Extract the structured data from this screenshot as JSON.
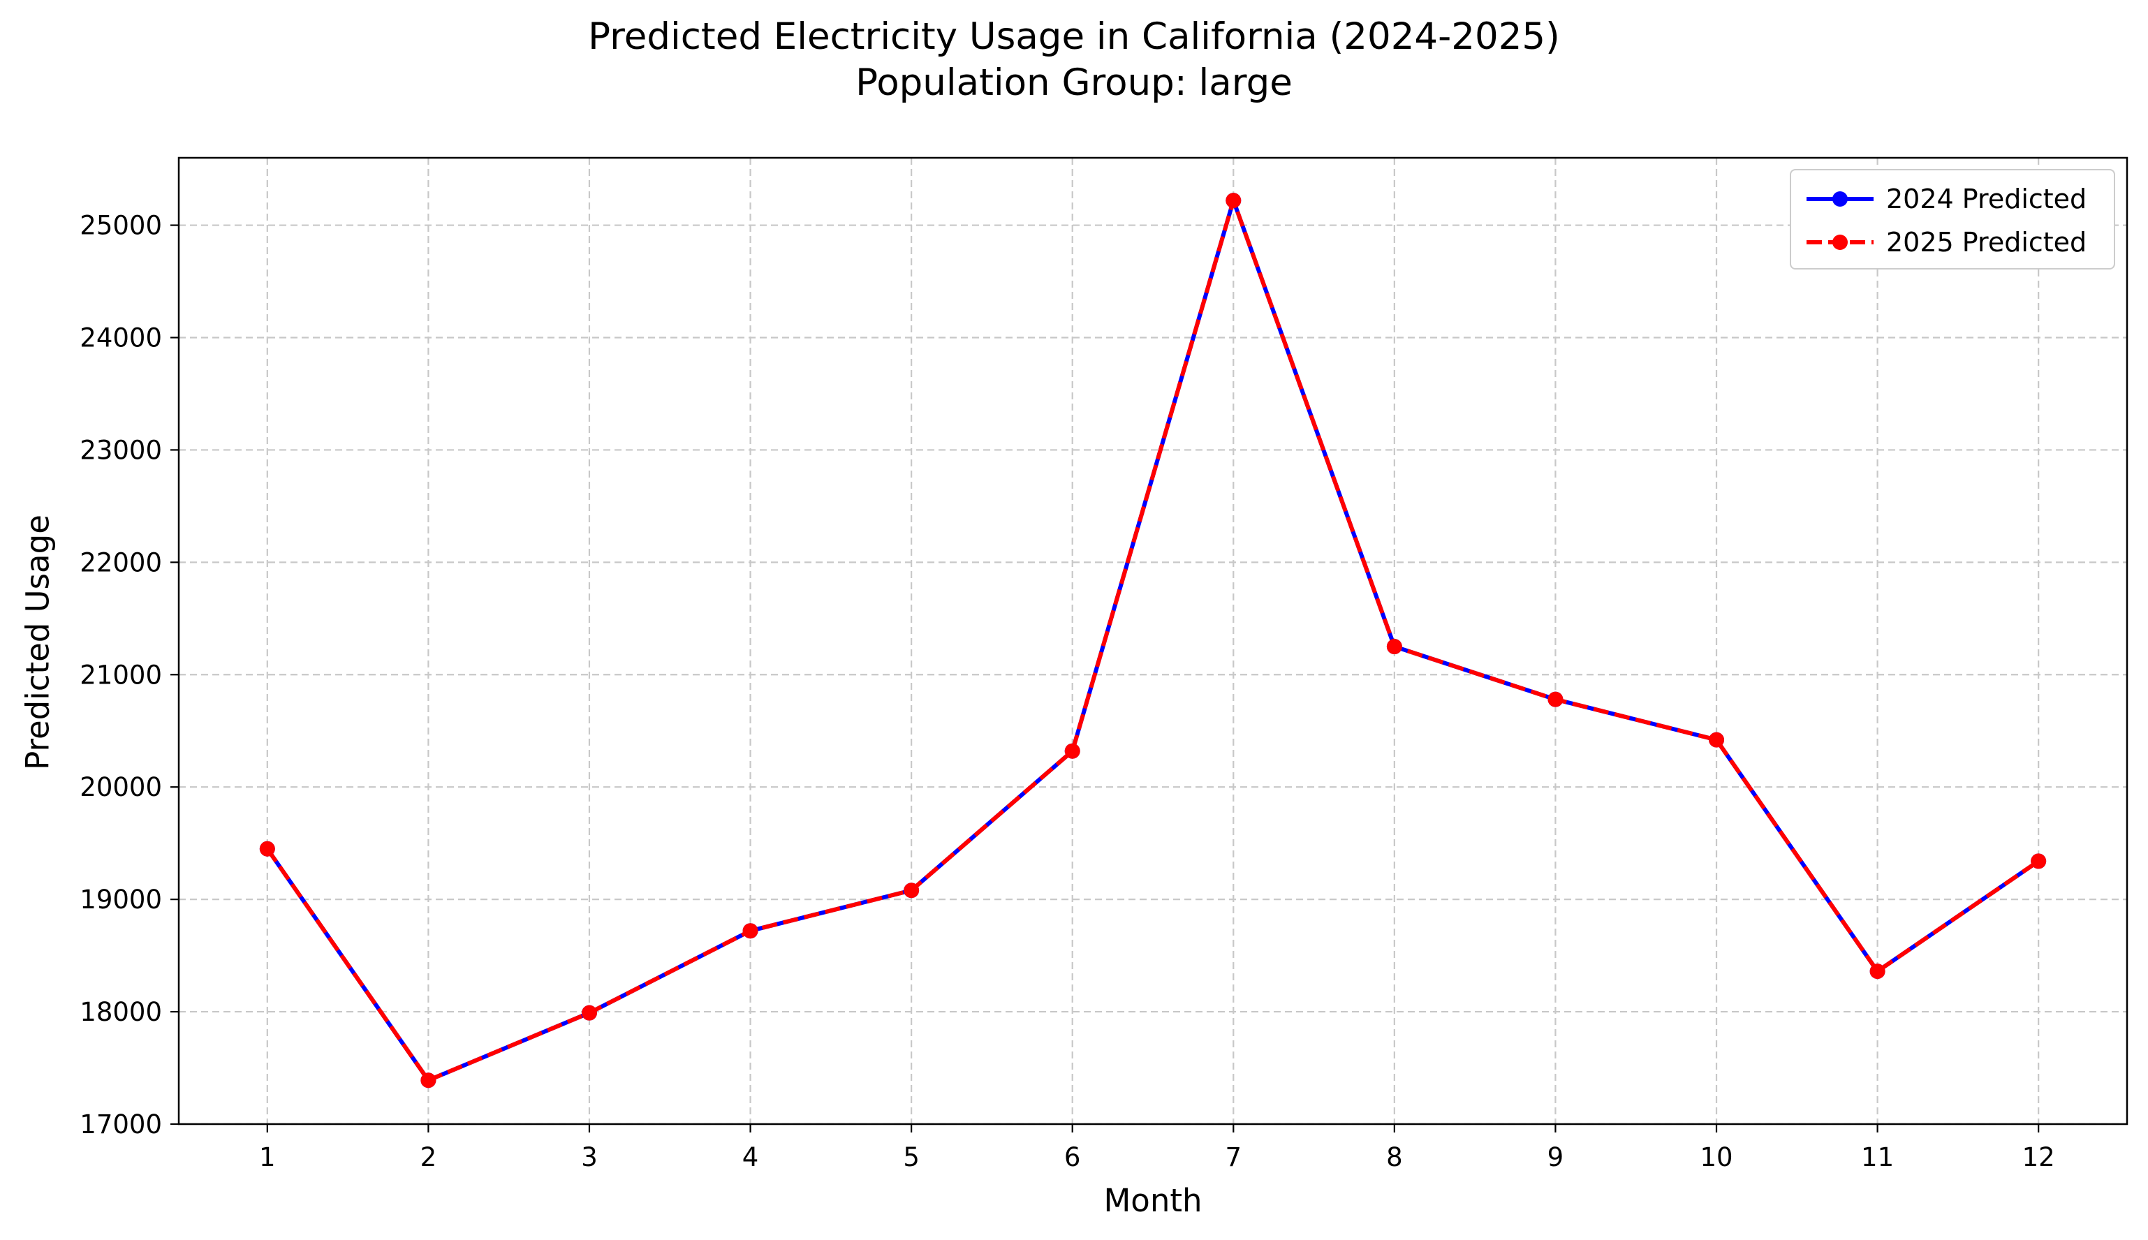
{
  "chart_data": {
    "type": "line",
    "title": "Predicted Electricity Usage in California (2024-2025)",
    "subtitle": "Population Group: large",
    "xlabel": "Month",
    "ylabel": "Predicted Usage",
    "x": [
      1,
      2,
      3,
      4,
      5,
      6,
      7,
      8,
      9,
      10,
      11,
      12
    ],
    "xlim": [
      0.45,
      12.55
    ],
    "ylim": [
      17000,
      25600
    ],
    "yticks": [
      17000,
      18000,
      19000,
      20000,
      21000,
      22000,
      23000,
      24000,
      25000
    ],
    "grid": true,
    "legend_position": "top-right",
    "series": [
      {
        "name": "2024 Predicted",
        "color": "#0000ff",
        "line_style": "solid",
        "marker": "circle",
        "values": [
          19450,
          17390,
          17990,
          18720,
          19080,
          20320,
          25220,
          21250,
          20780,
          20420,
          18360,
          19340
        ]
      },
      {
        "name": "2025 Predicted",
        "color": "#ff0000",
        "line_style": "dashed",
        "marker": "circle",
        "values": [
          19450,
          17390,
          17990,
          18720,
          19080,
          20320,
          25220,
          21250,
          20780,
          20420,
          18360,
          19340
        ]
      }
    ]
  }
}
